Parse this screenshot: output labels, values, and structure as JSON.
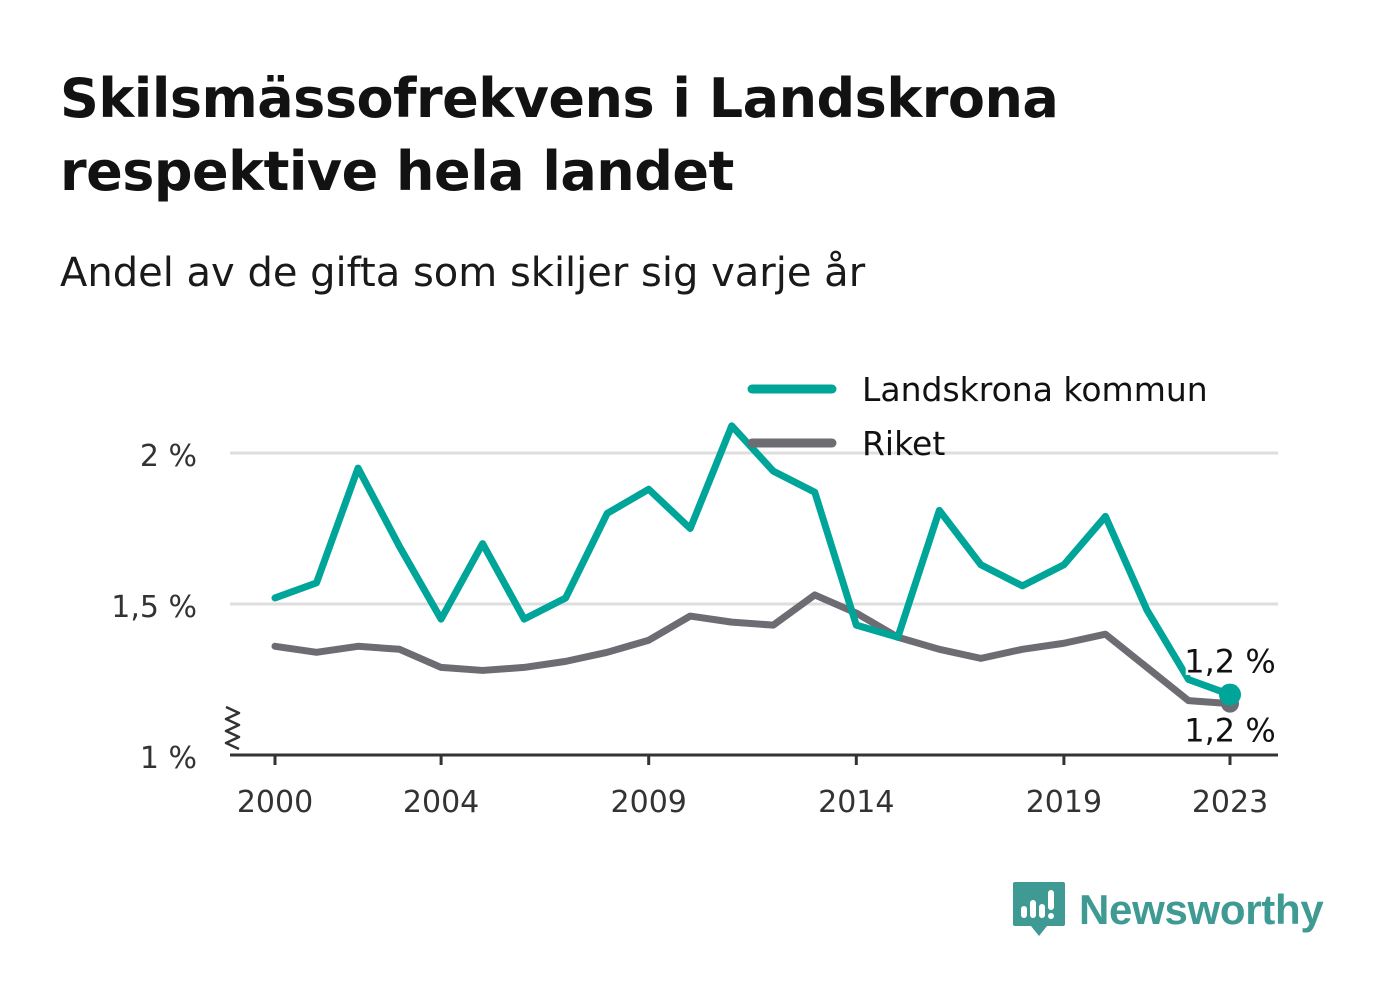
{
  "title": "Skilsmässofrekvens i Landskrona respektive hela landet",
  "subtitle": "Andel av de gifta som skiljer sig varje år",
  "brand": {
    "name": "Newsworthy",
    "icon": "bar-chart-speech-bubble-icon",
    "color": "#3e9a93"
  },
  "chart_data": {
    "type": "line",
    "x": [
      2000,
      2001,
      2002,
      2003,
      2004,
      2005,
      2006,
      2007,
      2008,
      2009,
      2010,
      2011,
      2012,
      2013,
      2014,
      2015,
      2016,
      2017,
      2018,
      2019,
      2020,
      2021,
      2022,
      2023
    ],
    "x_ticks": [
      2000,
      2004,
      2009,
      2014,
      2019,
      2023
    ],
    "x_tick_labels": [
      "2000",
      "2004",
      "2009",
      "2014",
      "2019",
      "2023"
    ],
    "y_ticks": [
      1,
      1.5,
      2
    ],
    "y_tick_labels": [
      "1 %",
      "1,5 %",
      "2 %"
    ],
    "ylim": [
      1,
      2
    ],
    "y_axis_break": true,
    "grid": true,
    "legend_position": "top-right",
    "series": [
      {
        "name": "Landskrona kommun",
        "color": "#00a59a",
        "values": [
          1.52,
          1.57,
          1.95,
          1.69,
          1.45,
          1.7,
          1.45,
          1.52,
          1.8,
          1.88,
          1.75,
          2.09,
          1.94,
          1.87,
          1.43,
          1.39,
          1.81,
          1.63,
          1.56,
          1.63,
          1.79,
          1.48,
          1.25,
          1.2
        ],
        "end_label": "1,2 %"
      },
      {
        "name": "Riket",
        "color": "#6d6c73",
        "values": [
          1.36,
          1.34,
          1.36,
          1.35,
          1.29,
          1.28,
          1.29,
          1.31,
          1.34,
          1.38,
          1.46,
          1.44,
          1.43,
          1.53,
          1.47,
          1.39,
          1.35,
          1.32,
          1.35,
          1.37,
          1.4,
          1.29,
          1.18,
          1.17
        ],
        "end_label": "1,2 %"
      }
    ]
  }
}
